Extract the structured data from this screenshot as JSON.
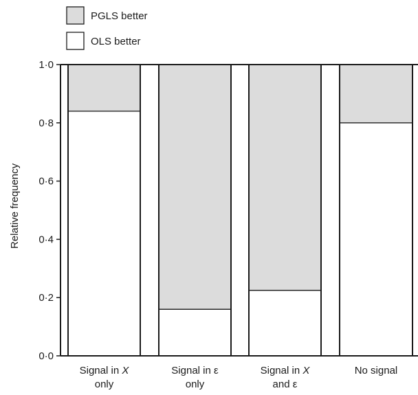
{
  "chart_data": {
    "type": "bar",
    "stacked": true,
    "normalized": true,
    "ylabel": "Relative frequency",
    "xlabel": "",
    "ylim": [
      0,
      1
    ],
    "yticks": [
      0,
      0.2,
      0.4,
      0.6,
      0.8,
      1.0
    ],
    "ytick_labels": [
      "0·0",
      "0·2",
      "0·4",
      "0·6",
      "0·8",
      "1·0"
    ],
    "categories": [
      {
        "line1": "Signal in ",
        "line1_em": "X",
        "line2": "only"
      },
      {
        "line1": "Signal in ε",
        "line1_em": "",
        "line2": "only"
      },
      {
        "line1": "Signal in ",
        "line1_em": "X",
        "line2": "and ε"
      },
      {
        "line1": "No signal",
        "line1_em": "",
        "line2": ""
      }
    ],
    "series": [
      {
        "name": "OLS better",
        "values": [
          0.84,
          0.16,
          0.225,
          0.8
        ],
        "color": "#ffffff"
      },
      {
        "name": "PGLS better",
        "values": [
          0.16,
          0.84,
          0.775,
          0.2
        ],
        "color": "#dcdcdc"
      }
    ],
    "legend_position": "top-left",
    "legend_order": [
      1,
      0
    ],
    "grid": false
  }
}
